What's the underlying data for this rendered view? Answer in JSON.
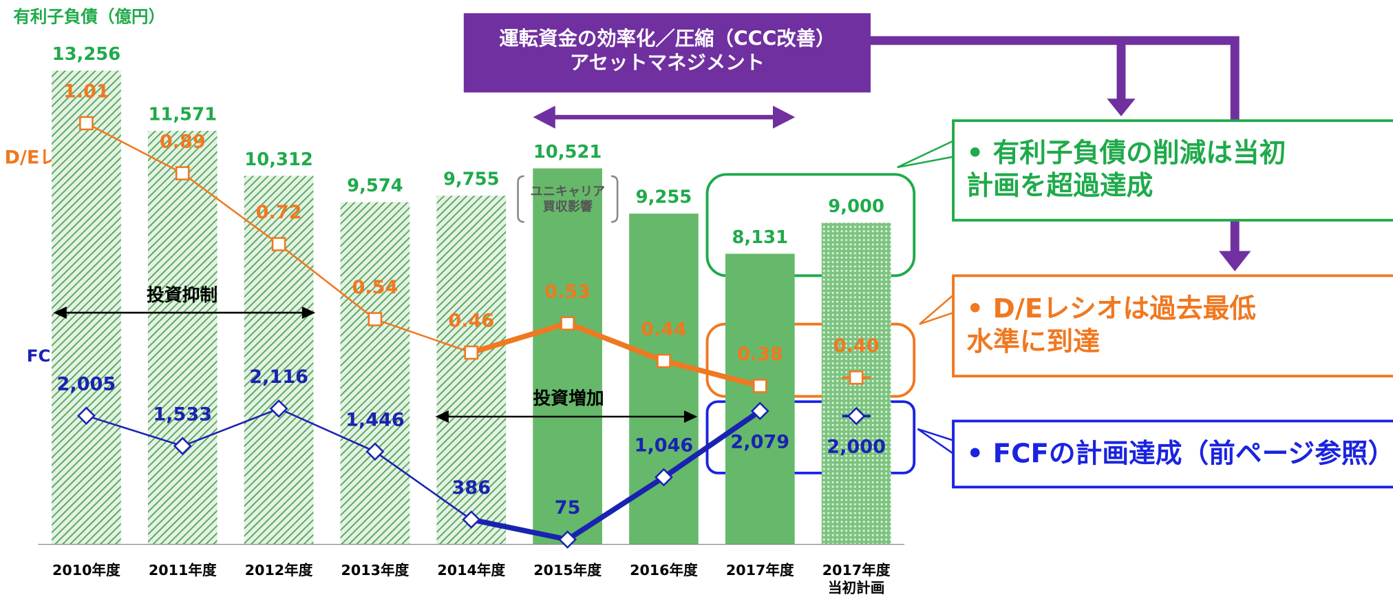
{
  "chart_data": [
    {
      "type": "bar",
      "y_label": "有利子負債（億円）",
      "categories": [
        "2010年度",
        "2011年度",
        "2012年度",
        "2013年度",
        "2014年度",
        "2015年度",
        "2016年度",
        "2017年度",
        "2017年度\n当初計画"
      ],
      "values": [
        13256,
        11571,
        10312,
        9574,
        9755,
        10521,
        9255,
        8131,
        9000
      ],
      "value_labels": [
        "13,256",
        "11,571",
        "10,312",
        "9,574",
        "9,755",
        "10,521",
        "9,255",
        "8,131",
        "9,000"
      ],
      "color": "#66b96a",
      "ylim": [
        0,
        14000
      ]
    },
    {
      "type": "line",
      "name": "D/Eレシオ",
      "values": [
        1.01,
        0.89,
        0.72,
        0.54,
        0.46,
        0.53,
        0.44,
        0.38,
        0.4
      ],
      "value_labels": [
        "1.01",
        "0.89",
        "0.72",
        "0.54",
        "0.46",
        "0.53",
        "0.44",
        "0.38",
        "0.40"
      ],
      "color": "#f07820",
      "marker": "square",
      "ylim": [
        0,
        1.2
      ]
    },
    {
      "type": "line",
      "name": "FCF（億円）",
      "values": [
        2005,
        1533,
        2116,
        1446,
        386,
        75,
        1046,
        2079,
        2000
      ],
      "value_labels": [
        "2,005",
        "1,533",
        "2,116",
        "1,446",
        "386",
        "75",
        "1,046",
        "2,079",
        "2,000"
      ],
      "color": "#1a23b0",
      "marker": "diamond",
      "ylim": [
        0,
        7800
      ]
    }
  ],
  "annotations": {
    "restraint": "投資抑制",
    "increase": "投資増加",
    "acquisition": "ユニキャリア\n買収影響",
    "banner": "運転資金の効率化／圧縮（CCC改善）\nアセットマネジメント",
    "callout_debt": "• 有利子負債の削減は当初\n計画を超過達成",
    "callout_de": "• D/Eレシオは過去最低\n水準に到達",
    "callout_fcf": "• FCFの計画達成（前ページ参照）"
  }
}
